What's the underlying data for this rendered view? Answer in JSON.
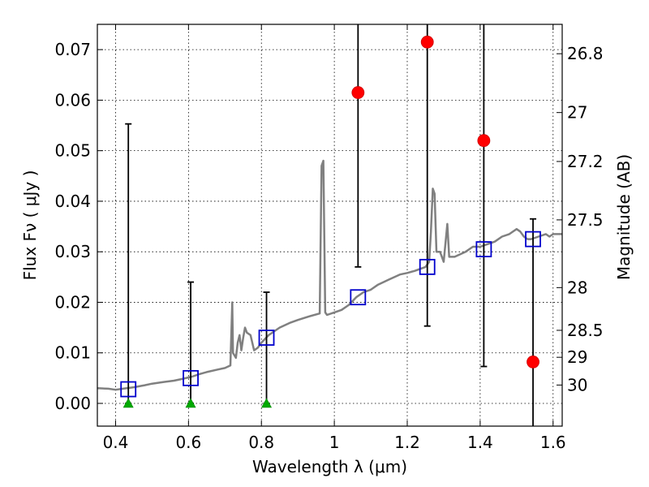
{
  "chart_data": {
    "type": "scatter",
    "xlabel": "Wavelength  λ (μm)",
    "ylabel": "Flux  Fν  ( μJy )",
    "ylabel_right": "Magnitude (AB)",
    "xlim": [
      0.35,
      1.625
    ],
    "ylim": [
      -0.0045,
      0.075
    ],
    "x_ticks": [
      0.4,
      0.6,
      0.8,
      1.0,
      1.2,
      1.4,
      1.6
    ],
    "x_tick_labels": [
      "0.4",
      "0.6",
      "0.8",
      "1",
      "1.2",
      "1.4",
      "1.6"
    ],
    "y_ticks": [
      0.0,
      0.01,
      0.02,
      0.03,
      0.04,
      0.05,
      0.06,
      0.07
    ],
    "y_tick_labels": [
      "0.00",
      "0.01",
      "0.02",
      "0.03",
      "0.04",
      "0.05",
      "0.06",
      "0.07"
    ],
    "mag_ticks": [
      26.8,
      27,
      27.2,
      27.5,
      28,
      28.5,
      29,
      30
    ],
    "mag_tick_labels": [
      "26.8",
      "27",
      "27.2",
      "27.5",
      "28",
      "28.5",
      "29",
      "30"
    ],
    "grid": true,
    "colors": {
      "spectrum": "#808080",
      "observed": "#ff0000",
      "model": "#0000cc",
      "nondetection": "#00aa00",
      "errorbar": "#000000"
    },
    "spectrum": [
      [
        0.35,
        0.003
      ],
      [
        0.38,
        0.0029
      ],
      [
        0.4,
        0.0027
      ],
      [
        0.42,
        0.0029
      ],
      [
        0.45,
        0.0032
      ],
      [
        0.48,
        0.0036
      ],
      [
        0.5,
        0.0039
      ],
      [
        0.53,
        0.0042
      ],
      [
        0.56,
        0.0045
      ],
      [
        0.58,
        0.0048
      ],
      [
        0.61,
        0.0053
      ],
      [
        0.63,
        0.0058
      ],
      [
        0.65,
        0.0062
      ],
      [
        0.68,
        0.0067
      ],
      [
        0.7,
        0.007
      ],
      [
        0.715,
        0.0075
      ],
      [
        0.72,
        0.02
      ],
      [
        0.722,
        0.01
      ],
      [
        0.73,
        0.009
      ],
      [
        0.735,
        0.012
      ],
      [
        0.74,
        0.0135
      ],
      [
        0.745,
        0.0105
      ],
      [
        0.75,
        0.013
      ],
      [
        0.755,
        0.015
      ],
      [
        0.76,
        0.014
      ],
      [
        0.77,
        0.0135
      ],
      [
        0.78,
        0.0105
      ],
      [
        0.79,
        0.011
      ],
      [
        0.8,
        0.012
      ],
      [
        0.82,
        0.0135
      ],
      [
        0.85,
        0.015
      ],
      [
        0.88,
        0.016
      ],
      [
        0.9,
        0.0165
      ],
      [
        0.93,
        0.0172
      ],
      [
        0.96,
        0.0178
      ],
      [
        0.965,
        0.047
      ],
      [
        0.97,
        0.048
      ],
      [
        0.975,
        0.018
      ],
      [
        0.98,
        0.0175
      ],
      [
        1.0,
        0.018
      ],
      [
        1.02,
        0.0185
      ],
      [
        1.04,
        0.0195
      ],
      [
        1.06,
        0.021
      ],
      [
        1.08,
        0.022
      ],
      [
        1.1,
        0.0225
      ],
      [
        1.12,
        0.0235
      ],
      [
        1.15,
        0.0245
      ],
      [
        1.18,
        0.0255
      ],
      [
        1.2,
        0.0258
      ],
      [
        1.22,
        0.0262
      ],
      [
        1.25,
        0.027
      ],
      [
        1.26,
        0.028
      ],
      [
        1.265,
        0.034
      ],
      [
        1.27,
        0.0425
      ],
      [
        1.275,
        0.0415
      ],
      [
        1.28,
        0.03
      ],
      [
        1.29,
        0.03
      ],
      [
        1.3,
        0.028
      ],
      [
        1.31,
        0.0355
      ],
      [
        1.315,
        0.029
      ],
      [
        1.33,
        0.029
      ],
      [
        1.36,
        0.03
      ],
      [
        1.38,
        0.031
      ],
      [
        1.4,
        0.031
      ],
      [
        1.42,
        0.0315
      ],
      [
        1.44,
        0.032
      ],
      [
        1.46,
        0.033
      ],
      [
        1.48,
        0.0335
      ],
      [
        1.5,
        0.0345
      ],
      [
        1.51,
        0.034
      ],
      [
        1.52,
        0.033
      ],
      [
        1.53,
        0.0325
      ],
      [
        1.54,
        0.0325
      ],
      [
        1.56,
        0.033
      ],
      [
        1.58,
        0.0335
      ],
      [
        1.59,
        0.033
      ],
      [
        1.6,
        0.0335
      ],
      [
        1.625,
        0.0335
      ]
    ],
    "observed": [
      {
        "x": 1.065,
        "y": 0.0615,
        "yerr_low": 0.027,
        "yerr_high": 0.075
      },
      {
        "x": 1.255,
        "y": 0.0715,
        "yerr_low": 0.0153,
        "yerr_high": 0.075
      },
      {
        "x": 1.41,
        "y": 0.052,
        "yerr_low": 0.0073,
        "yerr_high": 0.075
      },
      {
        "x": 1.545,
        "y": 0.0082,
        "yerr_low": -0.0045,
        "yerr_high": 0.0365
      }
    ],
    "model_points": [
      {
        "x": 0.435,
        "y": 0.0028
      },
      {
        "x": 0.606,
        "y": 0.005
      },
      {
        "x": 0.814,
        "y": 0.013
      },
      {
        "x": 1.065,
        "y": 0.021
      },
      {
        "x": 1.255,
        "y": 0.027
      },
      {
        "x": 1.41,
        "y": 0.0305
      },
      {
        "x": 1.545,
        "y": 0.0325
      }
    ],
    "upper_limits": [
      {
        "x": 0.435,
        "y": 0.0,
        "yerr_low": 0.0,
        "yerr_high": 0.0553
      },
      {
        "x": 0.606,
        "y": 0.0,
        "yerr_low": 0.0,
        "yerr_high": 0.024
      },
      {
        "x": 0.814,
        "y": 0.0,
        "yerr_low": 0.0,
        "yerr_high": 0.022
      }
    ]
  }
}
